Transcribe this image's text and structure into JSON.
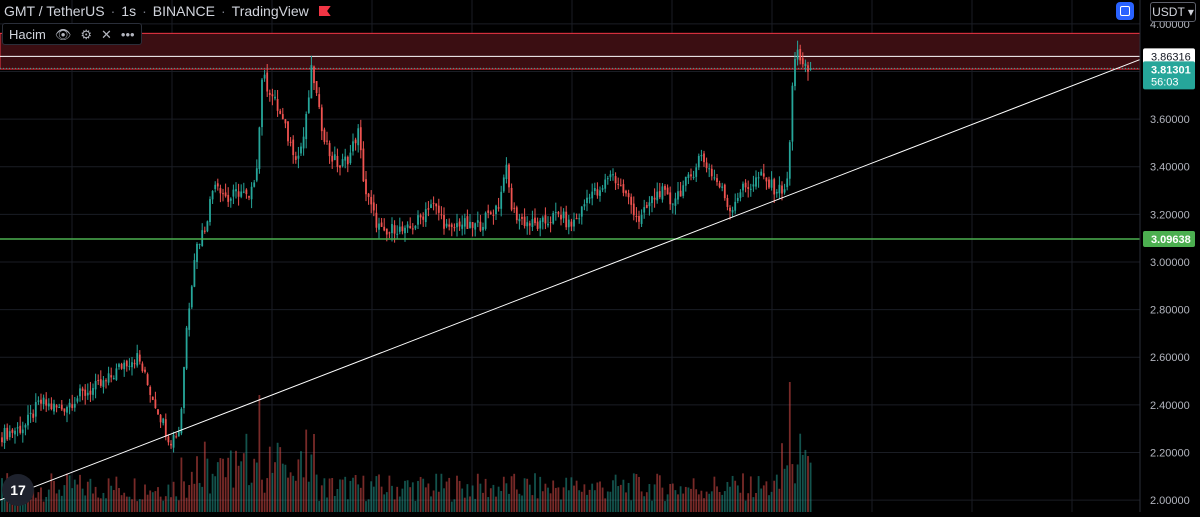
{
  "header": {
    "symbol": "GMT / TetherUS",
    "interval": "1s",
    "exchange": "BINANCE",
    "platform": "TradingView"
  },
  "indicator": {
    "name": "Hacim"
  },
  "currency_selector": "USDT",
  "logo_text": "17",
  "colors": {
    "background": "#000000",
    "up": "#26a69a",
    "down": "#ef5350",
    "zone_fill": "#3b0e12",
    "zone_border": "#f23645",
    "support_line": "#4caf50",
    "trend_line": "#ffffff",
    "grid": "#1a1d24"
  },
  "price_labels": {
    "upper": "3.86316",
    "current": "3.81301",
    "countdown": "56:03",
    "support": "3.09638"
  },
  "chart_data": {
    "type": "candlestick",
    "ylim": [
      1.95,
      4.1
    ],
    "yticks": [
      "4.00000",
      "3.80000",
      "3.60000",
      "3.40000",
      "3.20000",
      "3.00000",
      "2.80000",
      "2.60000",
      "2.40000",
      "2.20000",
      "2.00000"
    ],
    "resistance_zone": [
      3.81,
      3.96
    ],
    "resistance_line": 3.86316,
    "current_price": 3.81301,
    "support_line": 3.09638,
    "trend_line": {
      "from": [
        0,
        2.0
      ],
      "to": [
        1140,
        3.85
      ]
    },
    "close_path": [
      [
        0,
        2.27
      ],
      [
        25,
        2.31
      ],
      [
        40,
        2.41
      ],
      [
        60,
        2.38
      ],
      [
        80,
        2.44
      ],
      [
        105,
        2.49
      ],
      [
        125,
        2.58
      ],
      [
        138,
        2.6
      ],
      [
        148,
        2.48
      ],
      [
        158,
        2.38
      ],
      [
        170,
        2.25
      ],
      [
        180,
        2.3
      ],
      [
        186,
        2.7
      ],
      [
        195,
        3.05
      ],
      [
        205,
        3.15
      ],
      [
        215,
        3.35
      ],
      [
        228,
        3.26
      ],
      [
        240,
        3.3
      ],
      [
        250,
        3.25
      ],
      [
        258,
        3.45
      ],
      [
        262,
        3.78
      ],
      [
        270,
        3.72
      ],
      [
        280,
        3.62
      ],
      [
        290,
        3.5
      ],
      [
        298,
        3.44
      ],
      [
        305,
        3.55
      ],
      [
        312,
        3.82
      ],
      [
        320,
        3.6
      ],
      [
        330,
        3.45
      ],
      [
        340,
        3.4
      ],
      [
        350,
        3.45
      ],
      [
        358,
        3.55
      ],
      [
        365,
        3.3
      ],
      [
        375,
        3.18
      ],
      [
        385,
        3.1
      ],
      [
        395,
        3.15
      ],
      [
        405,
        3.12
      ],
      [
        420,
        3.18
      ],
      [
        430,
        3.25
      ],
      [
        440,
        3.2
      ],
      [
        450,
        3.12
      ],
      [
        460,
        3.17
      ],
      [
        470,
        3.14
      ],
      [
        480,
        3.16
      ],
      [
        490,
        3.2
      ],
      [
        500,
        3.25
      ],
      [
        505,
        3.42
      ],
      [
        512,
        3.22
      ],
      [
        520,
        3.18
      ],
      [
        530,
        3.16
      ],
      [
        540,
        3.15
      ],
      [
        550,
        3.18
      ],
      [
        560,
        3.2
      ],
      [
        570,
        3.15
      ],
      [
        580,
        3.2
      ],
      [
        590,
        3.3
      ],
      [
        600,
        3.28
      ],
      [
        610,
        3.38
      ],
      [
        620,
        3.32
      ],
      [
        630,
        3.25
      ],
      [
        640,
        3.17
      ],
      [
        650,
        3.25
      ],
      [
        660,
        3.3
      ],
      [
        670,
        3.25
      ],
      [
        680,
        3.3
      ],
      [
        690,
        3.35
      ],
      [
        700,
        3.45
      ],
      [
        708,
        3.4
      ],
      [
        715,
        3.35
      ],
      [
        722,
        3.3
      ],
      [
        730,
        3.22
      ],
      [
        740,
        3.3
      ],
      [
        750,
        3.32
      ],
      [
        760,
        3.36
      ],
      [
        770,
        3.32
      ],
      [
        780,
        3.3
      ],
      [
        788,
        3.33
      ],
      [
        792,
        3.72
      ],
      [
        797,
        3.92
      ],
      [
        802,
        3.82
      ],
      [
        807,
        3.8
      ],
      [
        812,
        3.81
      ]
    ],
    "volume_spikes": [
      {
        "x": 259,
        "value": 0.9
      },
      {
        "x": 790,
        "value": 1.0
      }
    ]
  }
}
